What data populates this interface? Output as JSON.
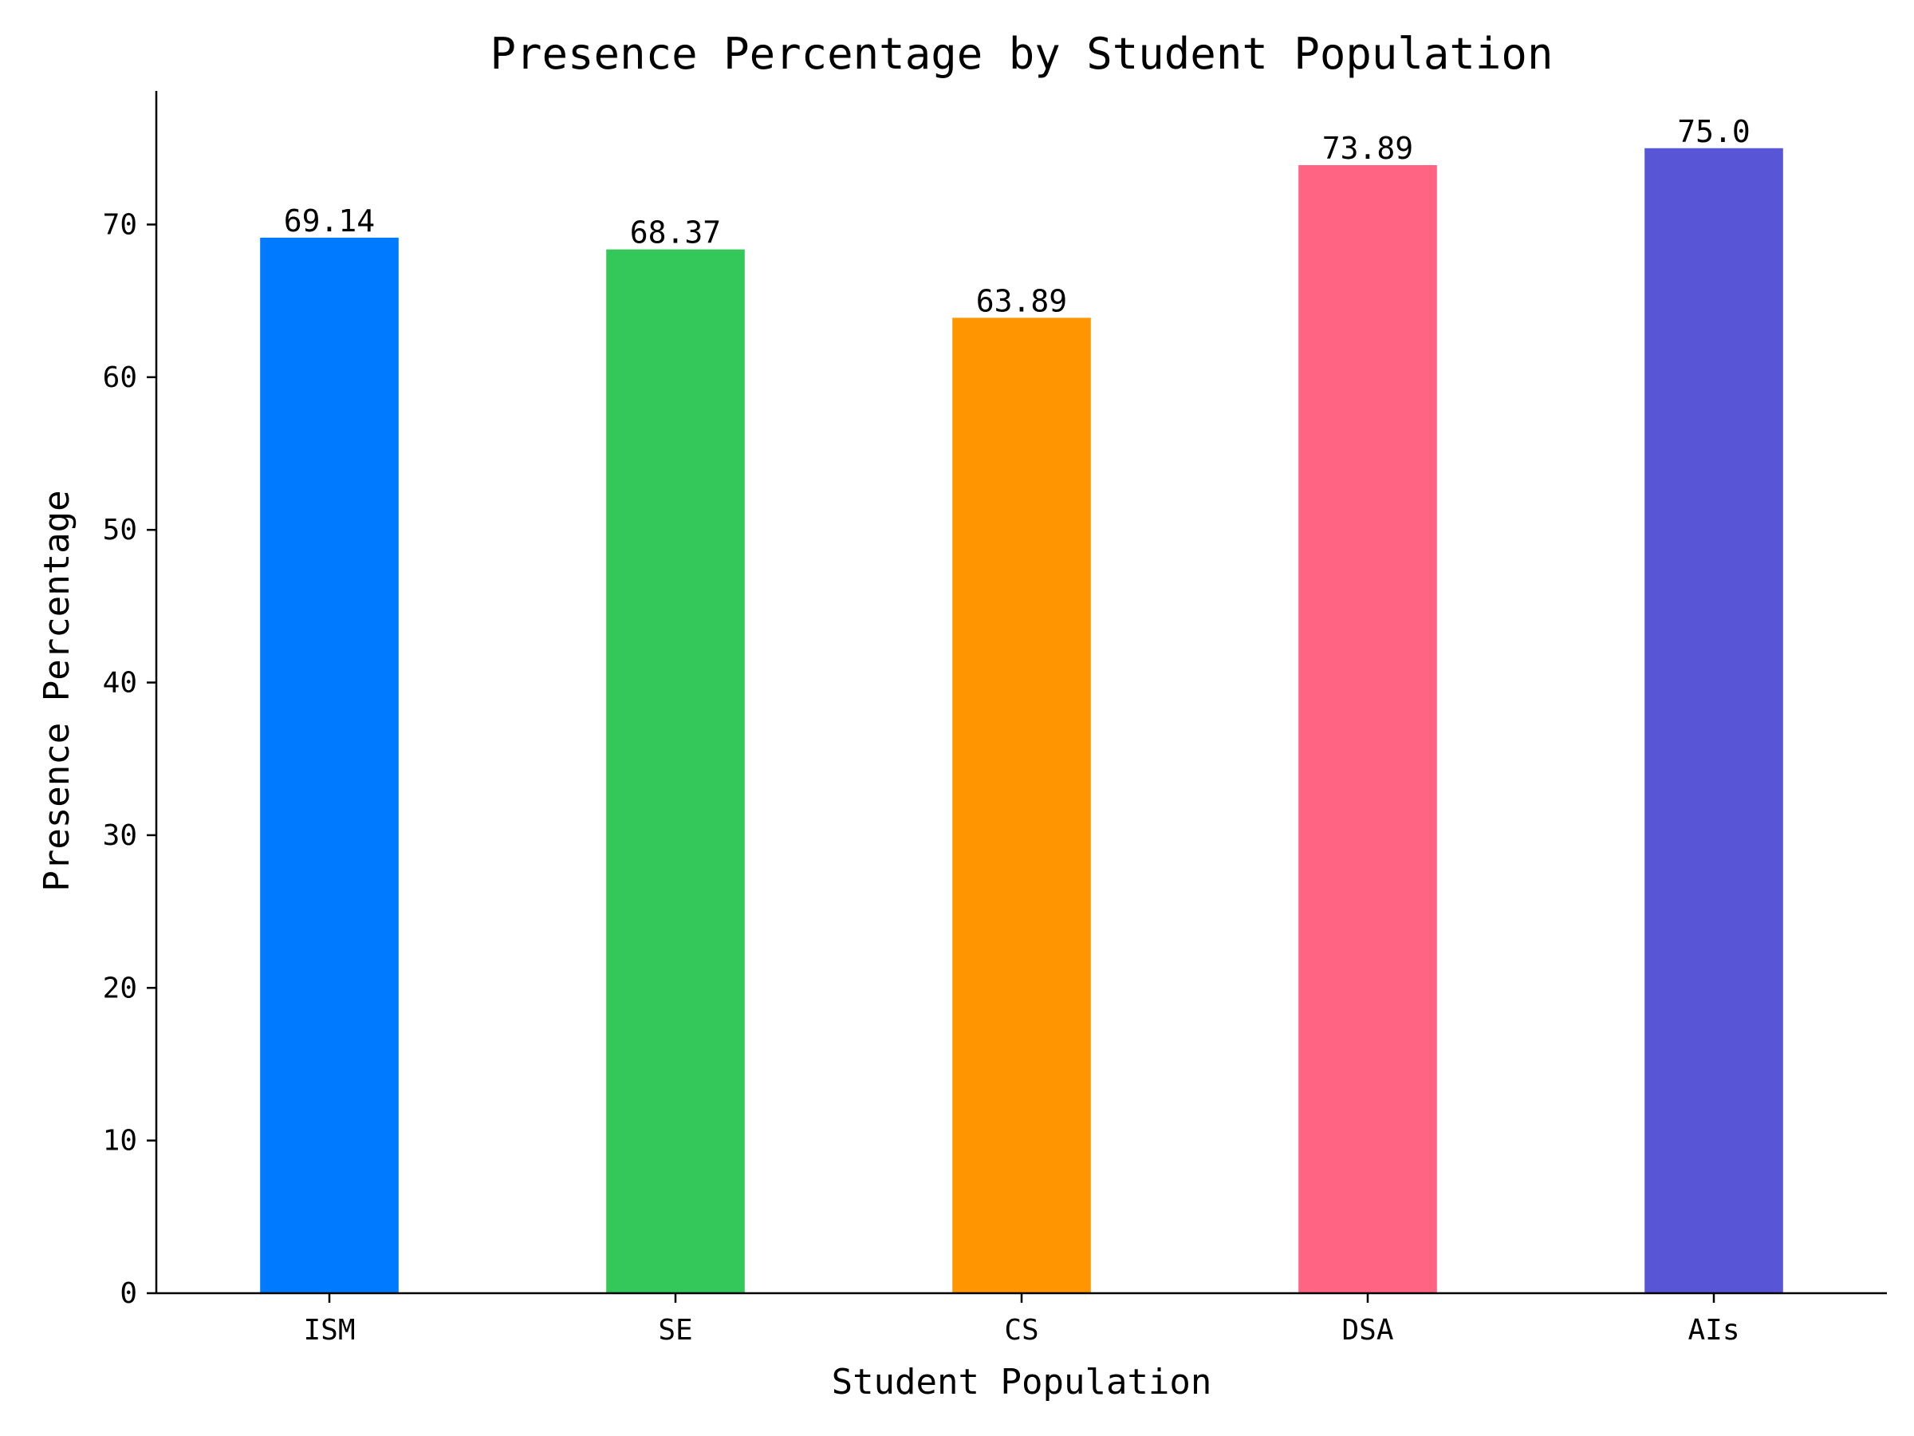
{
  "chart_data": {
    "type": "bar",
    "title": "Presence Percentage by Student Population",
    "xlabel": "Student Population",
    "ylabel": "Presence Percentage",
    "categories": [
      "ISM",
      "SE",
      "CS",
      "DSA",
      "AIs"
    ],
    "values": [
      69.14,
      68.37,
      63.89,
      73.89,
      75.0
    ],
    "data_labels": [
      "69.14",
      "68.37",
      "63.89",
      "73.89",
      "75.0"
    ],
    "colors": [
      "#007aff",
      "#34c759",
      "#ff9500",
      "#ff6482",
      "#5856d6"
    ],
    "ylim": [
      0,
      78.75
    ],
    "yticks": [
      0,
      10,
      20,
      30,
      40,
      50,
      60,
      70
    ],
    "grid": false,
    "legend": "none",
    "spines": [
      "left",
      "bottom"
    ]
  }
}
